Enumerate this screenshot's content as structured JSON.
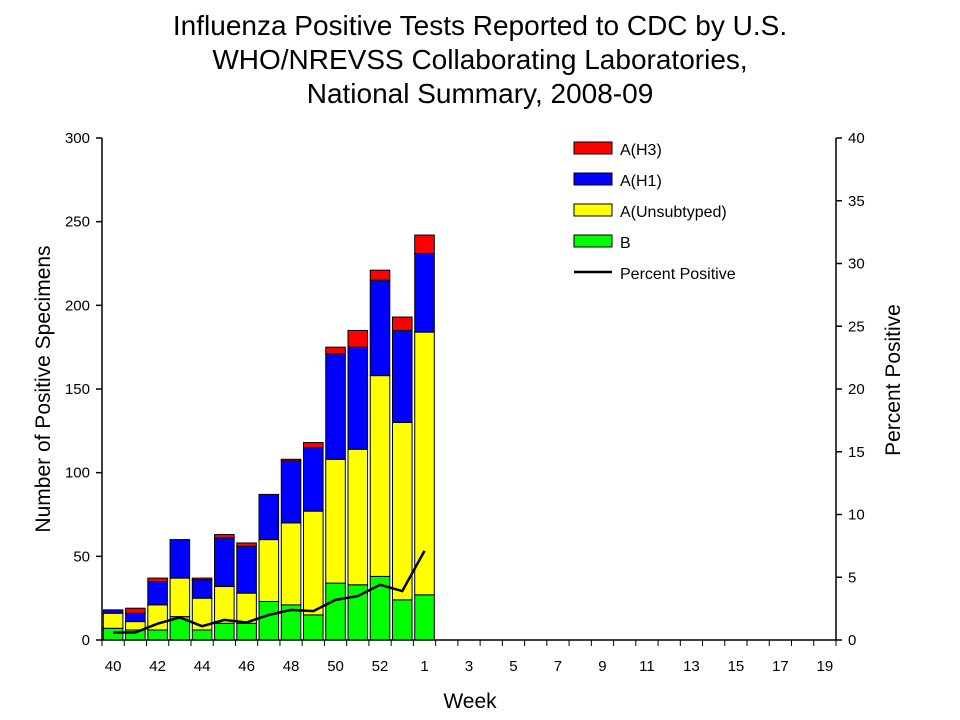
{
  "chart_data": {
    "type": "bar",
    "title_lines": [
      "Influenza Positive Tests Reported to CDC by U.S.",
      "WHO/NREVSS Collaborating Laboratories,",
      "National Summary, 2008-09"
    ],
    "xlabel": "Week",
    "ylabel": "Number of Positive Specimens",
    "y2label": "Percent Positive",
    "ylim": [
      0,
      300
    ],
    "yticks": [
      0,
      50,
      100,
      150,
      200,
      250,
      300
    ],
    "y2lim": [
      0,
      40
    ],
    "y2ticks": [
      0,
      5,
      10,
      15,
      20,
      25,
      30,
      35,
      40
    ],
    "x_tick_labels": [
      "40",
      "42",
      "44",
      "46",
      "48",
      "50",
      "52",
      "1",
      "3",
      "5",
      "7",
      "9",
      "11",
      "13",
      "15",
      "17",
      "19"
    ],
    "weeks": [
      "40",
      "41",
      "42",
      "43",
      "44",
      "45",
      "46",
      "47",
      "48",
      "49",
      "50",
      "51",
      "52",
      "1",
      "2",
      "3",
      "4",
      "5",
      "6",
      "7",
      "8",
      "9",
      "10",
      "11",
      "12",
      "13",
      "14",
      "15",
      "16",
      "17",
      "18",
      "19",
      "20"
    ],
    "stack_order": [
      "B",
      "A(Unsubtyped)",
      "A(H1)",
      "A(H3)"
    ],
    "series": [
      {
        "name": "B",
        "color": "#00ff00",
        "values": [
          7,
          6,
          6,
          14,
          6,
          10,
          10,
          23,
          21,
          15,
          34,
          33,
          38,
          24,
          27
        ]
      },
      {
        "name": "A(Unsubtyped)",
        "color": "#ffff00",
        "values": [
          9,
          5,
          15,
          23,
          19,
          22,
          18,
          37,
          49,
          62,
          74,
          81,
          120,
          106,
          157
        ]
      },
      {
        "name": "A(H1)",
        "color": "#0000ff",
        "values": [
          2,
          5,
          14,
          23,
          11,
          29,
          28,
          27,
          37,
          38,
          63,
          61,
          57,
          55,
          47
        ]
      },
      {
        "name": "A(H3)",
        "color": "#ff0000",
        "values": [
          0,
          3,
          2,
          0,
          1,
          2,
          2,
          0,
          1,
          3,
          4,
          10,
          6,
          8,
          11
        ]
      }
    ],
    "line_series": {
      "name": "Percent Positive",
      "color": "#000000",
      "axis": "right",
      "values": [
        0.6,
        0.6,
        1.3,
        1.8,
        1.1,
        1.6,
        1.4,
        2.0,
        2.4,
        2.3,
        3.2,
        3.5,
        4.4,
        3.9,
        7.1
      ]
    },
    "legend": [
      {
        "label": "A(H3)",
        "color": "#ff0000",
        "kind": "box"
      },
      {
        "label": "A(H1)",
        "color": "#0000ff",
        "kind": "box"
      },
      {
        "label": "A(Unsubtyped)",
        "color": "#ffff00",
        "kind": "box"
      },
      {
        "label": "B",
        "color": "#00ff00",
        "kind": "box"
      },
      {
        "label": "Percent Positive",
        "color": "#000000",
        "kind": "line"
      }
    ],
    "legend_position": "top-right"
  }
}
